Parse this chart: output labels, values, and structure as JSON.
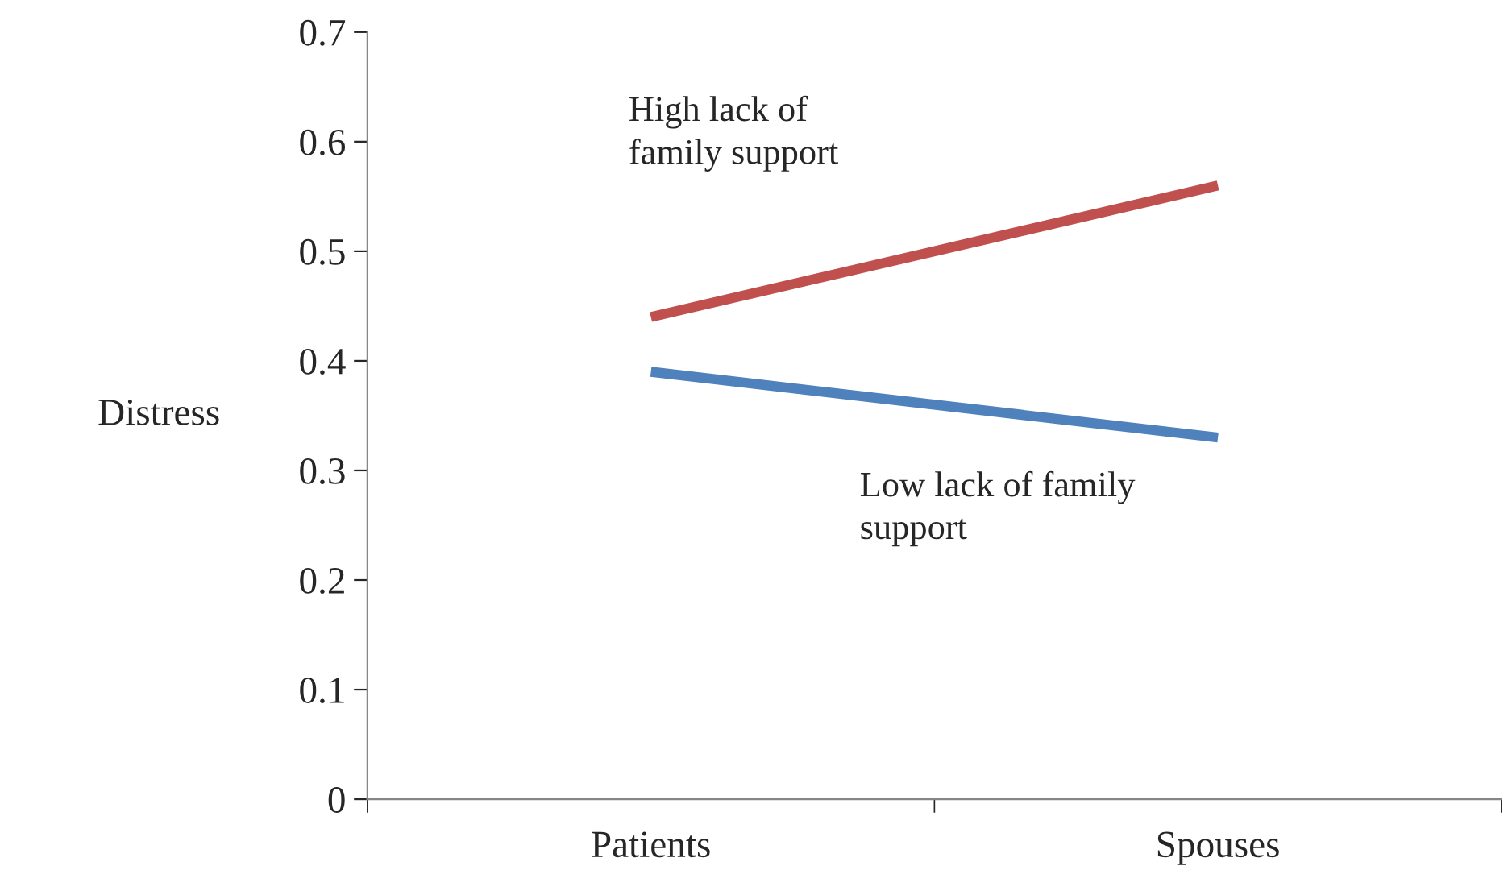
{
  "chart_data": {
    "type": "line",
    "ylabel": "Distress",
    "categories": [
      "Patients",
      "Spouses"
    ],
    "series": [
      {
        "name": "High lack of\nfamily support",
        "color": "#c0504d",
        "values": [
          0.44,
          0.56
        ]
      },
      {
        "name": "Low lack of family\nsupport",
        "color": "#4f81bd",
        "values": [
          0.39,
          0.33
        ]
      }
    ],
    "ylim": [
      0,
      0.7
    ],
    "yticks": [
      0,
      0.1,
      0.2,
      0.3,
      0.4,
      0.5,
      0.6,
      0.7
    ],
    "grid": false,
    "marker": "none",
    "line_style": "solid"
  }
}
